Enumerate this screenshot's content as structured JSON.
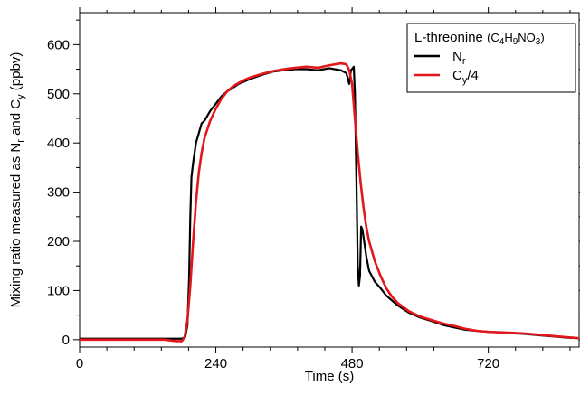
{
  "chart_data": {
    "type": "line",
    "xlabel": "Time (s)",
    "ylabel": "Mixing ratio measured as N",
    "ylabel_sub_r": "r",
    "ylabel_mid": " and C",
    "ylabel_sub_y": "y",
    "ylabel_tail": " (ppbv)",
    "xlim": [
      0,
      880
    ],
    "ylim": [
      -15,
      665
    ],
    "xticks": [
      0,
      240,
      480,
      720
    ],
    "yticks": [
      0,
      100,
      200,
      300,
      400,
      500,
      600
    ],
    "xtick_labels": [
      "0",
      "240",
      "480",
      "720"
    ],
    "ytick_labels": [
      "0",
      "100",
      "200",
      "300",
      "400",
      "500",
      "600"
    ],
    "legend": {
      "title": "L-threonine (C4H9NO3)",
      "title_main": "L-threonine ",
      "title_formula_open": "(C",
      "title_formula_s1": "4",
      "title_formula_h": "H",
      "title_formula_s2": "9",
      "title_formula_no": "NO",
      "title_formula_s3": "3",
      "title_formula_close": ")",
      "placement": "top-right",
      "entries": [
        {
          "label": "Nr",
          "main": "N",
          "sub": "r",
          "suffix": "",
          "color": "#000000"
        },
        {
          "label": "Cy/4",
          "main": "C",
          "sub": "y",
          "suffix": "/4",
          "color": "#e3161c"
        }
      ]
    },
    "series": [
      {
        "name": "Nr",
        "color": "#000000",
        "x": [
          0,
          50,
          100,
          150,
          180,
          186,
          190,
          193,
          195,
          197,
          200,
          205,
          210,
          215,
          220,
          225,
          230,
          240,
          250,
          260,
          270,
          280,
          290,
          300,
          320,
          340,
          360,
          380,
          400,
          420,
          440,
          460,
          470,
          475,
          478,
          481,
          483,
          485,
          488,
          490,
          492,
          494,
          496,
          498,
          500,
          505,
          510,
          520,
          530,
          540,
          560,
          580,
          600,
          620,
          640,
          660,
          680,
          700,
          720,
          740,
          760,
          780,
          800,
          820,
          840,
          860,
          880
        ],
        "y": [
          2,
          2,
          2,
          2,
          2,
          5,
          30,
          130,
          250,
          330,
          360,
          400,
          420,
          440,
          445,
          455,
          465,
          480,
          495,
          505,
          512,
          520,
          525,
          530,
          538,
          545,
          548,
          550,
          550,
          548,
          552,
          548,
          542,
          520,
          548,
          552,
          555,
          500,
          300,
          150,
          110,
          130,
          230,
          225,
          210,
          170,
          140,
          118,
          105,
          90,
          70,
          55,
          45,
          38,
          30,
          25,
          20,
          18,
          16,
          15,
          13,
          12,
          10,
          8,
          6,
          4,
          3
        ]
      },
      {
        "name": "Cy/4",
        "color": "#e3161c",
        "x": [
          0,
          50,
          100,
          150,
          170,
          180,
          185,
          190,
          195,
          200,
          205,
          210,
          215,
          220,
          230,
          240,
          250,
          260,
          270,
          280,
          290,
          300,
          320,
          340,
          360,
          380,
          400,
          420,
          440,
          460,
          470,
          475,
          480,
          485,
          490,
          495,
          500,
          505,
          510,
          520,
          530,
          540,
          550,
          560,
          580,
          600,
          620,
          640,
          660,
          680,
          700,
          720,
          740,
          760,
          780,
          800,
          820,
          840,
          860,
          880
        ],
        "y": [
          0,
          0,
          0,
          0,
          -3,
          -3,
          5,
          40,
          110,
          200,
          280,
          340,
          380,
          410,
          445,
          470,
          490,
          505,
          515,
          522,
          528,
          533,
          540,
          546,
          550,
          553,
          555,
          553,
          558,
          562,
          560,
          548,
          520,
          450,
          380,
          320,
          270,
          230,
          200,
          160,
          130,
          105,
          88,
          75,
          58,
          47,
          40,
          33,
          28,
          22,
          18,
          16,
          15,
          14,
          13,
          11,
          9,
          7,
          5,
          3
        ]
      }
    ]
  }
}
